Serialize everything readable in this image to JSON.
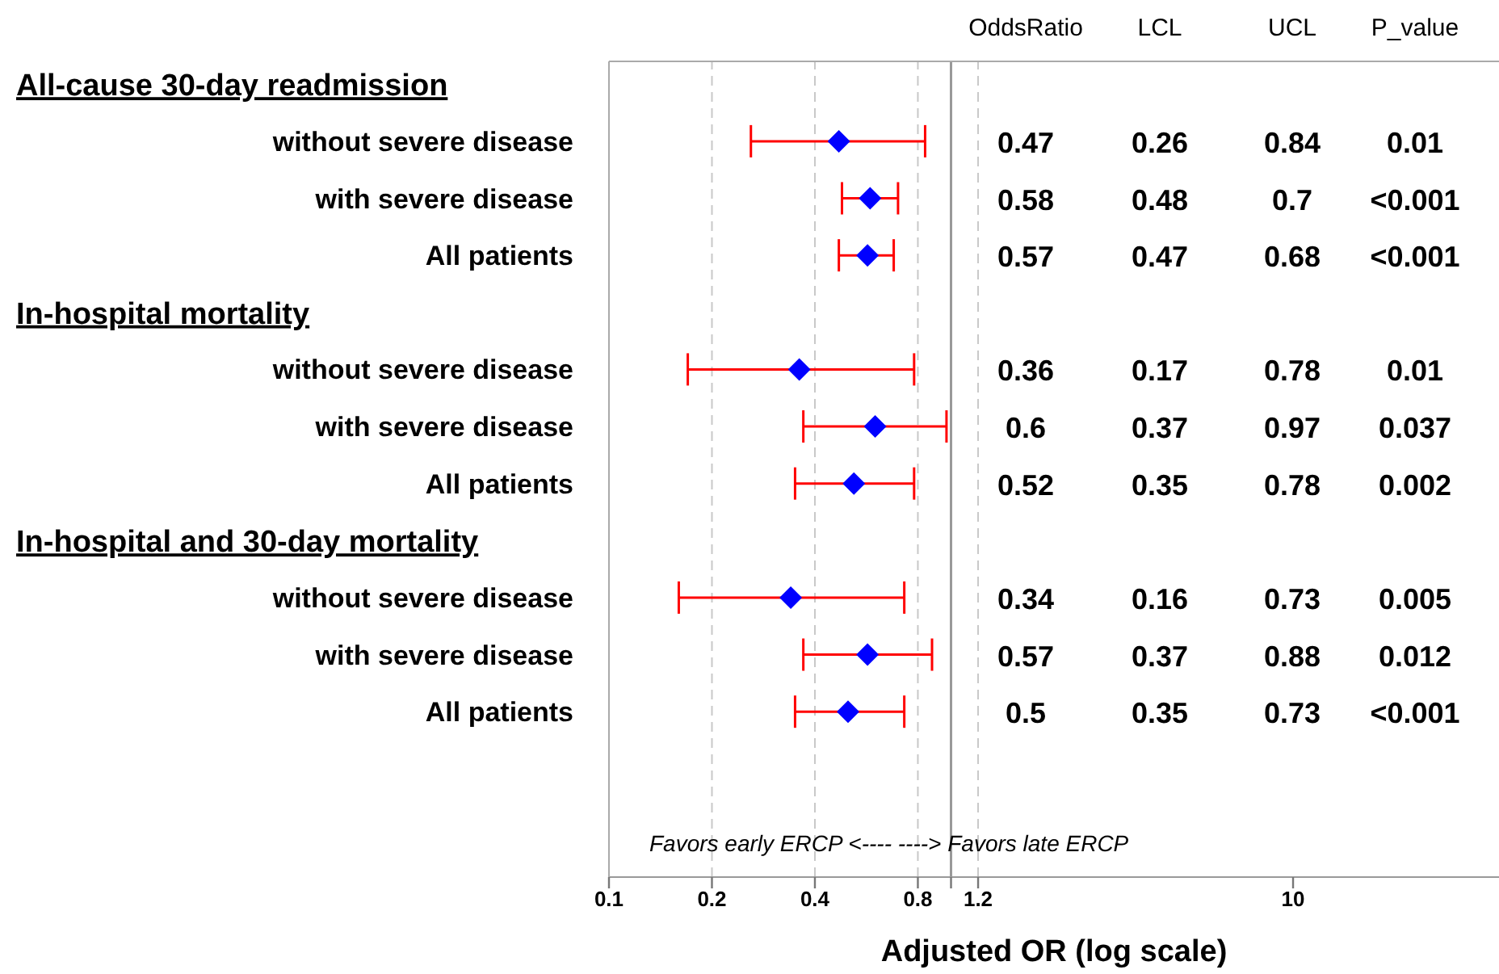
{
  "chart_data": {
    "type": "scatter",
    "orientation": "horizontal",
    "xlabel": "Adjusted OR (log scale)",
    "categories": [
      null,
      "without severe disease",
      "with severe disease",
      "All patients",
      null,
      "without severe disease",
      "with severe disease",
      "All patients",
      null,
      "without severe disease",
      "with severe disease",
      "All patients"
    ],
    "series": [
      {
        "color": "#0000ff",
        "values": [
          null,
          0.47,
          0.58,
          0.57,
          null,
          0.36,
          0.6,
          0.52,
          null,
          0.34,
          0.57,
          0.5
        ],
        "errors": [
          null,
          [
            0.26,
            0.84
          ],
          [
            0.48,
            0.7
          ],
          [
            0.47,
            0.68
          ],
          null,
          [
            0.17,
            0.78
          ],
          [
            0.37,
            0.97
          ],
          [
            0.35,
            0.78
          ],
          null,
          [
            0.16,
            0.73
          ],
          [
            0.37,
            0.88
          ],
          [
            0.35,
            0.73
          ]
        ]
      }
    ],
    "xlim": [
      0.1,
      40
    ],
    "xticks": [
      0.1,
      0.2,
      0.4,
      0.8,
      {
        "value": 1,
        "label": null
      },
      1.2,
      10
    ],
    "log": "x",
    "grid": "x",
    "marker": "diamond",
    "ref_lines": [
      {
        "axis": "x",
        "value": 1
      }
    ],
    "annotations": [
      "OddsRatio",
      "LCL",
      "UCL",
      "P_value",
      "All-cause 30-day readmission",
      "In-hospital  mortality",
      "In-hospital  and 30-day mortality",
      "Favors early ERCP <---- ----> Favors late ERCP",
      "0.47",
      "0.26",
      "0.84",
      "0.01",
      "0.58",
      "0.48",
      "0.7",
      "<0.001",
      "0.57",
      "0.47",
      "0.68",
      "<0.001",
      "0.36",
      "0.17",
      "0.78",
      "0.01",
      "0.6",
      "0.37",
      "0.97",
      "0.037",
      "0.52",
      "0.35",
      "0.78",
      "0.002",
      "0.34",
      "0.16",
      "0.73",
      "0.005",
      "0.57",
      "0.37",
      "0.88",
      "0.012",
      "0.5",
      "0.35",
      "0.73",
      "<0.001"
    ]
  }
}
